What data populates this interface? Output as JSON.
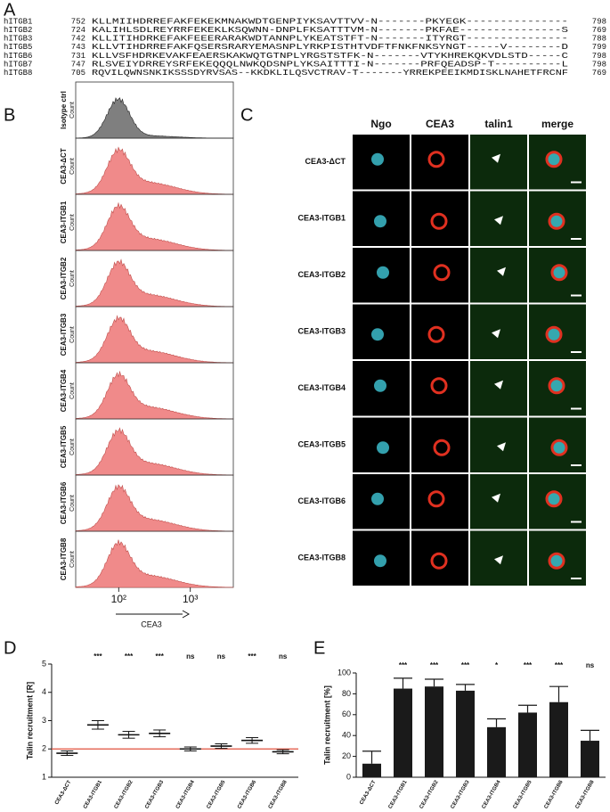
{
  "panel_labels": [
    "A",
    "B",
    "C",
    "D",
    "E"
  ],
  "alignment": {
    "rows": [
      {
        "name": "hITGB1",
        "start": 752,
        "sequence": "KLLMIIHDRREFAKFEKEKMNAKWDTGENPIYKSAVTTVV-N-------PKYEGK---------------",
        "end": 798
      },
      {
        "name": "hITGB2",
        "start": 724,
        "sequence": "KALIHLSDLREYRRFEKEKLKSQWNN-DNPLFKSATTTVM-N-------PKFAE---------------S",
        "end": 769
      },
      {
        "name": "hITGB3",
        "start": 742,
        "sequence": "KLLITIHDRKEFAKFEEERARAKWDTANNPLYKEATSTFT-N-------ITYRGT---------------",
        "end": 788
      },
      {
        "name": "hITGB5",
        "start": 743,
        "sequence": "KLLVTIHDRREFAKFQSERSRARYEMASNPLYRKPISTHTVDFTFNKFNKSYNGT-----V--------D",
        "end": 799
      },
      {
        "name": "hITGB6",
        "start": 731,
        "sequence": "KLLVSFHDRKEVAKFEAERSKAKWQTGTNPLYRGSTSTFK-N-------VTYKHREKQKVDLSTD-----C",
        "end": 798
      },
      {
        "name": "hITGB7",
        "start": 747,
        "sequence": "RLSVEIYDRREYSRFEKEQQQLNWKQDSNPLYKSAITTTI-N-------PRFQEADSP-T----------L",
        "end": 798
      },
      {
        "name": "hITGB8",
        "start": 705,
        "sequence": "RQVILQWNSNKIKSSSDYRVSAS--KKDKLILQSVCTRAV-T-------YRREKPEEIKMDISKLNAHETFRCNF",
        "end": 769
      }
    ]
  },
  "chart_data": [
    {
      "type": "flow-histogram",
      "samples": [
        "Isotype ctrl",
        "CEA3-ΔCT",
        "CEA3-ITGB1",
        "CEA3-ITGB2",
        "CEA3-ITGB3",
        "CEA3-ITGB4",
        "CEA3-ITGB5",
        "CEA3-ITGB6",
        "CEA3-ITGB8"
      ],
      "y_label": "Count",
      "x_label": "CEA3",
      "log_x": true,
      "xlim": [
        25,
        4000
      ],
      "xticks": [
        {
          "value": 100,
          "label": "10²"
        },
        {
          "value": 1000,
          "label": "10³"
        }
      ],
      "control_color": "#7f7f7f",
      "color": "#f08a8a"
    },
    {
      "type": "dot-plot",
      "y_label": "Talin recruitment [R]",
      "categories": [
        "CEA3-ΔCT",
        "CEA3-ITGB1",
        "CEA3-ITGB2",
        "CEA3-ITGB3",
        "CEA3-ITGB4",
        "CEA3-ITGB5",
        "CEA3-ITGB6",
        "CEA3-ITGB8"
      ],
      "values": [
        1.85,
        2.85,
        2.5,
        2.55,
        2.0,
        2.1,
        2.3,
        1.9
      ],
      "errors": [
        0.08,
        0.15,
        0.12,
        0.12,
        0.07,
        0.08,
        0.1,
        0.07
      ],
      "annotations": [
        "",
        "***",
        "***",
        "***",
        "ns",
        "ns",
        "***",
        "ns"
      ],
      "ylim": [
        1,
        5
      ],
      "yticks": [
        1,
        2,
        3,
        4,
        5
      ],
      "reference_line": {
        "value": 2,
        "color": "#e0503c"
      },
      "color": "#111111"
    },
    {
      "type": "bar",
      "y_label": "Talin recruitment [%]",
      "categories": [
        "CEA3-ΔCT",
        "CEA3-ITGB1",
        "CEA3-ITGB2",
        "CEA3-ITGB3",
        "CEA3-ITGB4",
        "CEA3-ITGB5",
        "CEA3-ITGB6",
        "CEA3-ITGB8"
      ],
      "values": [
        13,
        85,
        87,
        83,
        48,
        62,
        72,
        35
      ],
      "errors": [
        12,
        10,
        7,
        6,
        8,
        7,
        15,
        10
      ],
      "annotations": [
        "",
        "***",
        "***",
        "***",
        "*",
        "***",
        "***",
        "ns"
      ],
      "ylim": [
        0,
        100
      ],
      "yticks": [
        0,
        20,
        40,
        60,
        80,
        100
      ],
      "color": "#1a1a1a"
    }
  ],
  "microscopy": {
    "columns": [
      "Ngo",
      "CEA3",
      "talin1",
      "merge"
    ],
    "rows": [
      "CEA3-ΔCT",
      "CEA3-ITGB1",
      "CEA3-ITGB2",
      "CEA3-ITGB3",
      "CEA3-ITGB4",
      "CEA3-ITGB5",
      "CEA3-ITGB6",
      "CEA3-ITGB8"
    ]
  }
}
